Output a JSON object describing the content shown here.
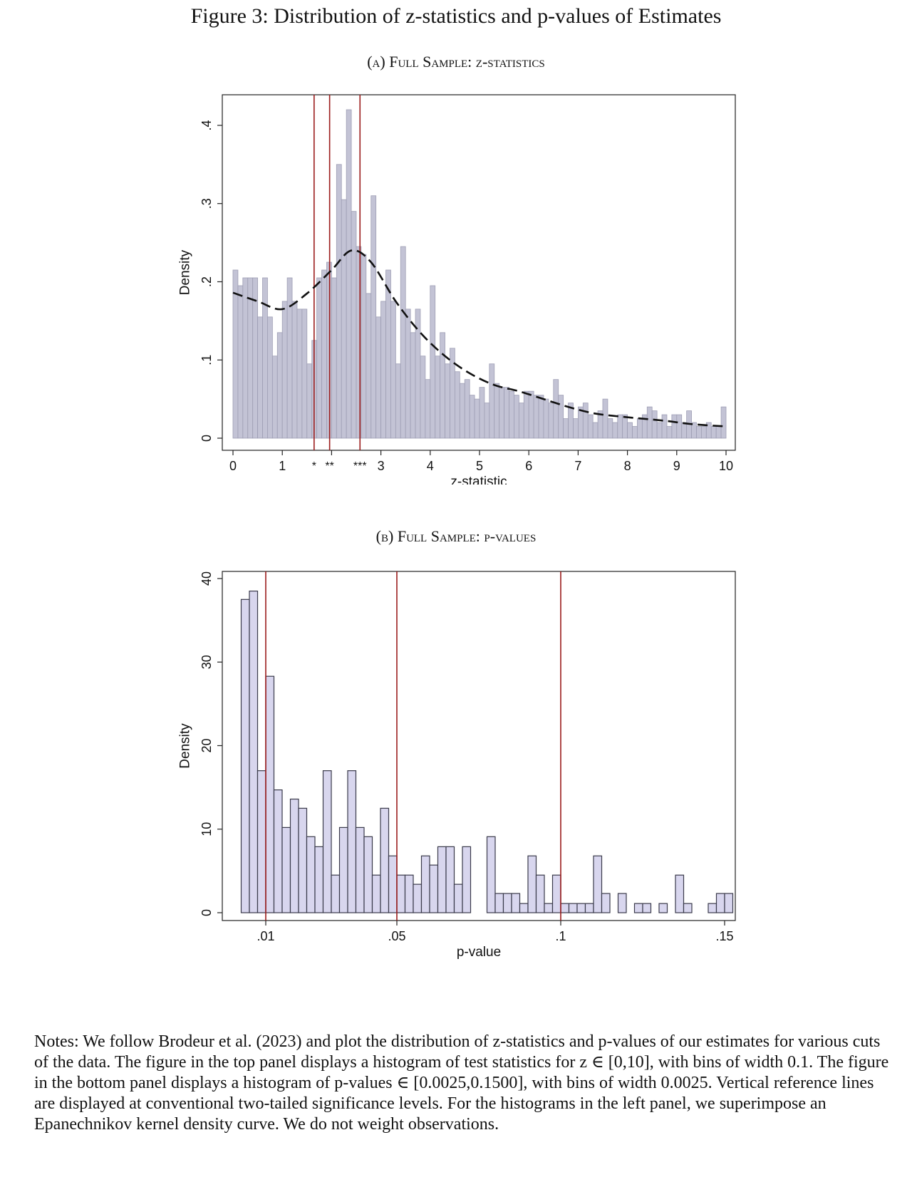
{
  "figure": {
    "title": "Figure 3: Distribution of z-statistics and p-values of Estimates"
  },
  "notes": "Notes: We follow Brodeur et al. (2023) and plot the distribution of z-statistics and p-values of our estimates for various cuts of the data. The figure in the top panel displays a histogram of test statistics for z ∈ [0,10], with bins of width 0.1. The figure in the bottom panel displays a histogram of p-values ∈ [0.0025,0.1500], with bins of width 0.0025. Vertical reference lines are displayed at conventional two-tailed significance levels. For the histograms in the left panel, we superimpose an Epanechnikov kernel density curve. We do not weight observations.",
  "colors": {
    "bar_fill_a": "#c3c3d5",
    "bar_stroke_a": "#9e9eb4",
    "bar_fill_b": "#d8d6ee",
    "bar_stroke_b": "#3a3a4a",
    "ref_line": "#9b1c1c",
    "axis": "#222222"
  },
  "chart_data": [
    {
      "type": "bar",
      "title": "(a) Full Sample: z-statistics",
      "xlabel": "z-statistic",
      "ylabel": "Density",
      "xlim": [
        0,
        10
      ],
      "ylim": [
        0,
        0.43
      ],
      "bin_width": 0.1,
      "x_start": 0,
      "xticks": [
        0,
        1,
        2,
        3,
        4,
        5,
        6,
        7,
        8,
        9,
        10
      ],
      "xtick_labels": [
        "0",
        "1",
        "",
        "3",
        "4",
        "5",
        "6",
        "7",
        "8",
        "9",
        "10"
      ],
      "yticks": [
        0,
        0.1,
        0.2,
        0.3,
        0.4
      ],
      "ytick_labels": [
        "0",
        ".1",
        ".2",
        ".3",
        ".4"
      ],
      "values": [
        0.215,
        0.195,
        0.205,
        0.205,
        0.205,
        0.155,
        0.205,
        0.155,
        0.105,
        0.135,
        0.175,
        0.205,
        0.175,
        0.165,
        0.165,
        0.095,
        0.125,
        0.205,
        0.215,
        0.225,
        0.205,
        0.35,
        0.305,
        0.42,
        0.29,
        0.245,
        0.235,
        0.185,
        0.31,
        0.155,
        0.175,
        0.215,
        0.175,
        0.095,
        0.245,
        0.165,
        0.135,
        0.165,
        0.105,
        0.075,
        0.195,
        0.105,
        0.135,
        0.095,
        0.115,
        0.085,
        0.07,
        0.075,
        0.055,
        0.05,
        0.065,
        0.045,
        0.095,
        0.07,
        0.065,
        0.065,
        0.06,
        0.055,
        0.045,
        0.06,
        0.06,
        0.055,
        0.055,
        0.05,
        0.045,
        0.075,
        0.055,
        0.025,
        0.045,
        0.025,
        0.04,
        0.045,
        0.03,
        0.02,
        0.035,
        0.05,
        0.025,
        0.02,
        0.03,
        0.03,
        0.02,
        0.015,
        0.025,
        0.03,
        0.04,
        0.035,
        0.02,
        0.03,
        0.015,
        0.03,
        0.03,
        0.02,
        0.035,
        0.02,
        0.015,
        0.015,
        0.02,
        0.015,
        0.015,
        0.04
      ],
      "kde": {
        "name": "Epanechnikov kernel density",
        "x": [
          0,
          0.5,
          1.0,
          1.5,
          2.0,
          2.4,
          2.8,
          3.3,
          3.8,
          4.3,
          4.8,
          5.3,
          5.8,
          6.3,
          6.8,
          7.3,
          7.8,
          8.3,
          8.8,
          9.3,
          10
        ],
        "y": [
          0.186,
          0.175,
          0.165,
          0.185,
          0.215,
          0.24,
          0.225,
          0.175,
          0.135,
          0.105,
          0.083,
          0.068,
          0.06,
          0.05,
          0.04,
          0.032,
          0.028,
          0.025,
          0.022,
          0.018,
          0.015
        ]
      },
      "ref_lines": [
        {
          "x": 1.645,
          "label": "*"
        },
        {
          "x": 1.96,
          "label": "**"
        },
        {
          "x": 2.576,
          "label": "***"
        }
      ]
    },
    {
      "type": "bar",
      "title": "(b) Full Sample: p-values",
      "xlabel": "p-value",
      "ylabel": "Density",
      "xlim": [
        0,
        0.15
      ],
      "ylim": [
        0,
        40
      ],
      "bin_width": 0.0025,
      "x_start": 0.0025,
      "xticks": [
        0.01,
        0.05,
        0.1,
        0.15
      ],
      "xtick_labels": [
        ".01",
        ".05",
        ".1",
        ".15"
      ],
      "yticks": [
        0,
        10,
        20,
        30,
        40
      ],
      "ytick_labels": [
        "0",
        "10",
        "20",
        "30",
        "40"
      ],
      "values": [
        37.5,
        38.5,
        17.0,
        28.3,
        14.7,
        10.2,
        13.6,
        12.5,
        9.1,
        7.9,
        17.0,
        4.5,
        10.2,
        17.0,
        10.2,
        9.1,
        4.5,
        12.5,
        6.8,
        4.5,
        4.5,
        3.4,
        6.8,
        5.7,
        7.9,
        7.9,
        3.4,
        7.9,
        0,
        0,
        9.1,
        2.3,
        2.3,
        2.3,
        1.1,
        6.8,
        4.5,
        1.1,
        4.5,
        1.1,
        1.1,
        1.1,
        1.1,
        6.8,
        2.3,
        0,
        2.3,
        0,
        1.1,
        1.1,
        0,
        1.1,
        0,
        4.5,
        1.1,
        0,
        0,
        1.1,
        2.3,
        2.3
      ],
      "ref_lines": [
        {
          "x": 0.01,
          "label": ""
        },
        {
          "x": 0.05,
          "label": ""
        },
        {
          "x": 0.1,
          "label": ""
        }
      ]
    }
  ]
}
